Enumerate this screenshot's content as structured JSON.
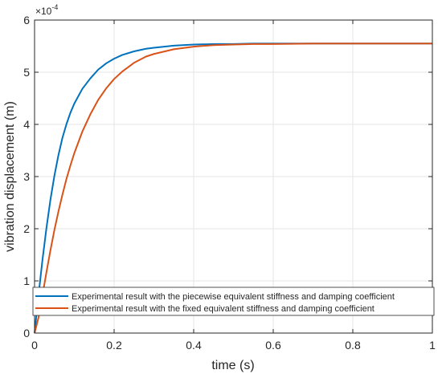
{
  "chart_data": {
    "type": "line",
    "xlabel": "time (s)",
    "ylabel": "vibration displacement (m)",
    "xlim": [
      0,
      1
    ],
    "ylim": [
      0,
      0.0006
    ],
    "y_exponent_label": "×10",
    "y_exponent_power": "-4",
    "x_ticks": [
      "0",
      "0.2",
      "0.4",
      "0.6",
      "0.8",
      "1"
    ],
    "y_ticks": [
      "0",
      "1",
      "2",
      "3",
      "4",
      "5",
      "6"
    ],
    "grid": true,
    "legend_position": "bottom",
    "colors": {
      "series_1": "#0072BD",
      "series_2": "#D95319",
      "grid": "#e6e6e6",
      "axis": "#262626"
    },
    "x": [
      0,
      0.01,
      0.02,
      0.03,
      0.04,
      0.05,
      0.06,
      0.07,
      0.08,
      0.09,
      0.1,
      0.12,
      0.14,
      0.16,
      0.18,
      0.2,
      0.22,
      0.25,
      0.28,
      0.3,
      0.35,
      0.4,
      0.45,
      0.5,
      0.55,
      0.6,
      0.7,
      0.8,
      0.9,
      1.0
    ],
    "series": [
      {
        "name": "Experimental result with the piecewise equivalent stiffness and damping coefficient",
        "values": [
          0,
          7.3e-05,
          0.000141,
          0.000202,
          0.000256,
          0.000302,
          0.000341,
          0.000374,
          0.0004,
          0.000422,
          0.00044,
          0.000468,
          0.000488,
          0.000505,
          0.000517,
          0.000526,
          0.000533,
          0.00054,
          0.000545,
          0.000547,
          0.000551,
          0.000553,
          0.000554,
          0.000554,
          0.000555,
          0.000555,
          0.000555,
          0.000555,
          0.000555,
          0.000555
        ]
      },
      {
        "name": "Experimental result with the fixed equivalent stiffness and damping coefficient",
        "values": [
          0,
          3e-05,
          7.3e-05,
          0.000117,
          0.000159,
          0.000198,
          0.000233,
          0.000265,
          0.000295,
          0.000321,
          0.000345,
          0.000386,
          0.000419,
          0.000447,
          0.000469,
          0.000487,
          0.000501,
          0.000518,
          0.00053,
          0.000535,
          0.000544,
          0.000549,
          0.000552,
          0.000553,
          0.000554,
          0.000554,
          0.000555,
          0.000555,
          0.000555,
          0.000555
        ]
      }
    ]
  }
}
